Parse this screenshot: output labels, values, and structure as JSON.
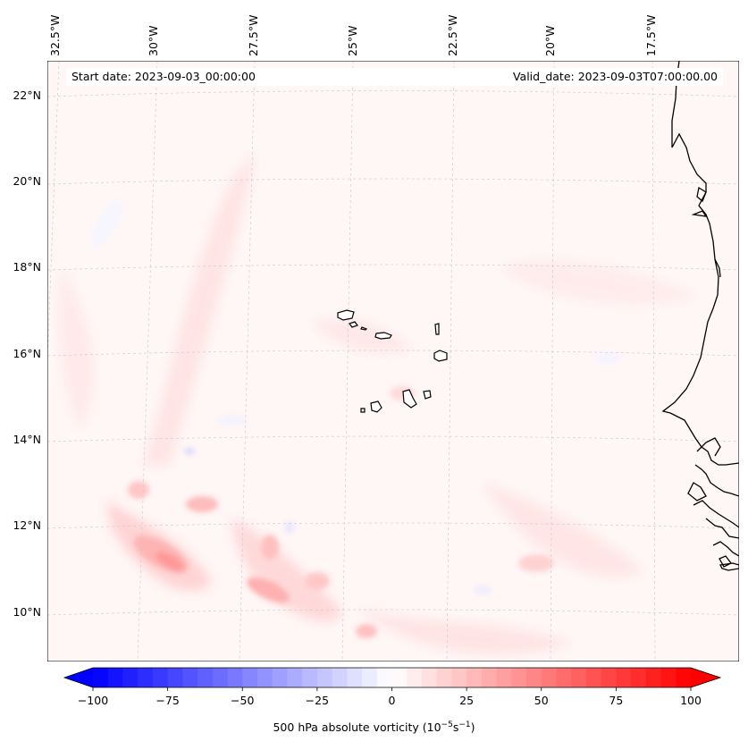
{
  "map": {
    "projection": "Lambert conformal",
    "background_field": "500 hPa absolute vorticity",
    "start_date_text": "Start date: 2023-09-03_00:00:00",
    "valid_date_text": "Valid_date: 2023-09-03T07:00:00.00",
    "lon_labels": [
      "32.5°W",
      "30°W",
      "27.5°W",
      "25°W",
      "22.5°W",
      "20°W",
      "17.5°W"
    ],
    "lat_labels": [
      "22°N",
      "20°N",
      "18°N",
      "16°N",
      "14°N",
      "12°N",
      "10°N"
    ],
    "features": [
      "Cabo Verde islands",
      "West African coastline (Senegal, Gambia, Guinea-Bissau, Guinea)"
    ]
  },
  "colorbar": {
    "label_prefix": "500 hPa absolute vorticity (10",
    "label_exp1": "−5",
    "label_mid": "s",
    "label_exp2": "−1",
    "label_suffix": ")",
    "min": -100,
    "max": 100,
    "ticks": [
      "−100",
      "−75",
      "−50",
      "−25",
      "0",
      "25",
      "50",
      "75",
      "100"
    ],
    "colors": {
      "negative": "#0000ff",
      "zero": "#ffffff",
      "positive": "#ff0000"
    },
    "extend": "both"
  }
}
